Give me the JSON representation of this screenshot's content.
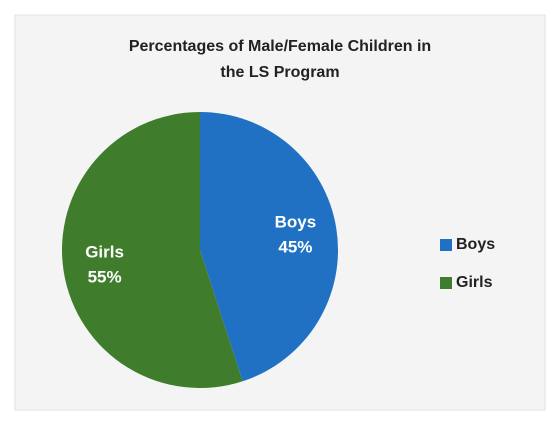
{
  "chart_data": {
    "type": "pie",
    "title": [
      "Percentages of Male/Female Children in",
      "the LS Program"
    ],
    "categories": [
      "Boys",
      "Girls"
    ],
    "values": [
      45,
      55
    ],
    "value_labels": [
      "45%",
      "55%"
    ],
    "colors": [
      "#2071c4",
      "#3f7d2c"
    ],
    "legend": "right"
  }
}
